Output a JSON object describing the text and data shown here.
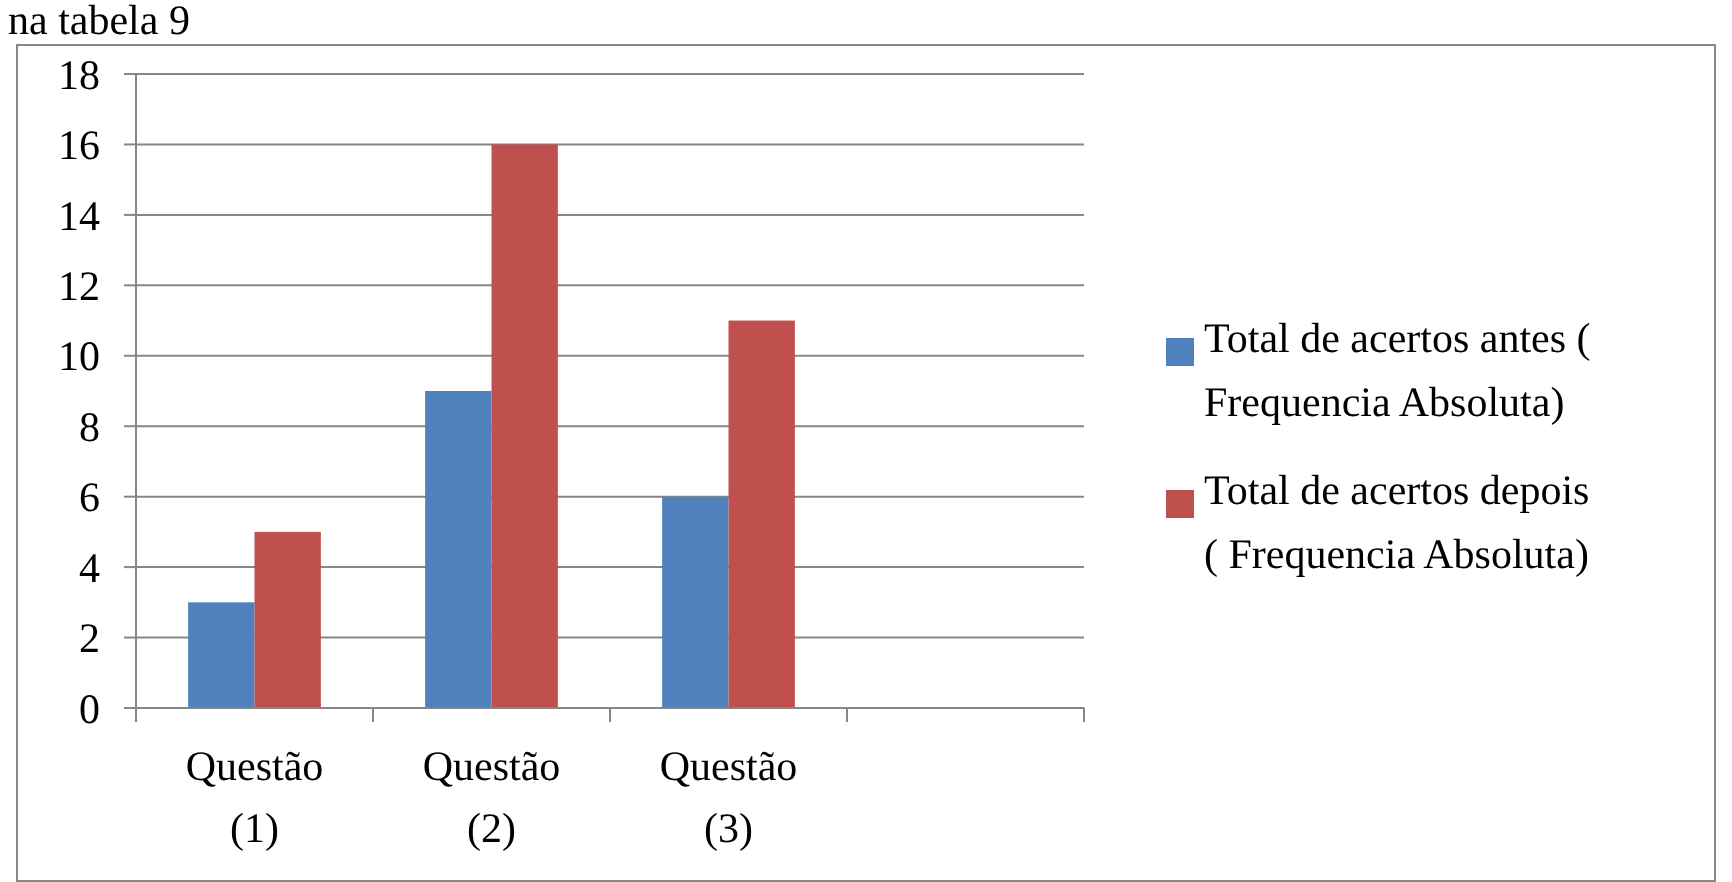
{
  "chart_data": {
    "type": "bar",
    "categories": [
      "Questão (1)",
      "Questão (2)",
      "Questão (3)",
      null
    ],
    "series": [
      {
        "name": "Total de acertos antes ( Frequencia Absoluta)",
        "color": "#4f81bd",
        "values": [
          3,
          9,
          6,
          null
        ]
      },
      {
        "name": "Total de acertos depois ( Frequencia Absoluta)",
        "color": "#c0504d",
        "values": [
          5,
          16,
          11,
          null
        ]
      }
    ],
    "ylim": [
      0,
      18
    ],
    "yticks": [
      0,
      2,
      4,
      6,
      8,
      10,
      12,
      14,
      16,
      18
    ],
    "grid": "y",
    "legend": "right",
    "annotations": [
      "na tabela 9"
    ]
  }
}
